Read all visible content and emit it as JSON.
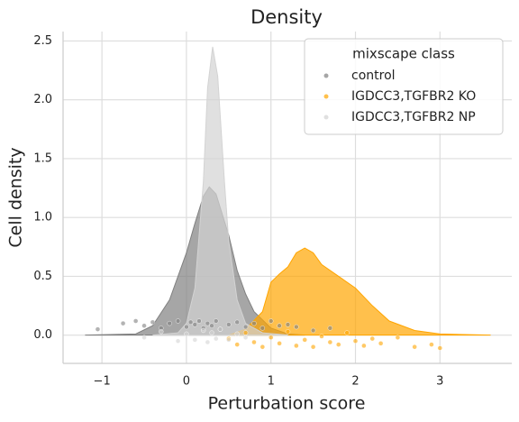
{
  "chart_data": {
    "type": "density",
    "title": "Density",
    "x_label": "Perturbation score",
    "y_label": "Cell density",
    "legend_title": "mixscape class",
    "legend_position": "upper right",
    "grid": true,
    "xlim": [
      -1.46,
      3.85
    ],
    "xticks": [
      {
        "value": -1,
        "label": "−1"
      },
      0,
      1,
      2,
      3
    ],
    "ylim": [
      -0.24,
      2.58
    ],
    "yticks": [
      {
        "value": 0,
        "label": "0.0"
      },
      0.5,
      {
        "value": 1,
        "label": "1.0"
      },
      1.5,
      {
        "value": 2,
        "label": "2.0"
      },
      2.5
    ],
    "series": [
      {
        "name": "control",
        "color": "#808080",
        "x": [
          -1.2,
          -0.6,
          -0.4,
          -0.2,
          0,
          0.1,
          0.2,
          0.27,
          0.35,
          0.5,
          0.6,
          0.7,
          0.8,
          1.0,
          1.2,
          1.4
        ],
        "values": [
          0,
          0.01,
          0.08,
          0.3,
          0.7,
          0.95,
          1.18,
          1.26,
          1.2,
          0.85,
          0.55,
          0.35,
          0.2,
          0.06,
          0.01,
          0
        ],
        "points_x": [
          -1.05,
          -0.75,
          -0.6,
          -0.5,
          -0.4,
          -0.3,
          -0.2,
          -0.1,
          0,
          0.05,
          0.1,
          0.15,
          0.2,
          0.25,
          0.3,
          0.35,
          0.4,
          0.5,
          0.6,
          0.7,
          0.8,
          0.9,
          1.0,
          1.1,
          1.2,
          1.3,
          1.5,
          1.7
        ],
        "points_y": [
          0.05,
          0.1,
          0.12,
          0.08,
          0.11,
          0.06,
          0.1,
          0.12,
          0.07,
          0.11,
          0.09,
          0.12,
          0.06,
          0.1,
          0.08,
          0.12,
          0.05,
          0.09,
          0.11,
          0.07,
          0.1,
          0.06,
          0.12,
          0.08,
          0.09,
          0.07,
          0.04,
          0.06
        ]
      },
      {
        "name": "IGDCC3,TGFBR2 KO",
        "color": "#ffa500",
        "x": [
          0.5,
          0.7,
          0.9,
          1.0,
          1.1,
          1.2,
          1.3,
          1.4,
          1.5,
          1.6,
          1.8,
          2.0,
          2.2,
          2.4,
          2.7,
          3.0,
          3.6
        ],
        "values": [
          0,
          0.05,
          0.2,
          0.45,
          0.52,
          0.58,
          0.7,
          0.74,
          0.7,
          0.6,
          0.5,
          0.4,
          0.25,
          0.12,
          0.04,
          0.01,
          0
        ],
        "points_x": [
          0.5,
          0.6,
          0.7,
          0.8,
          0.9,
          1.0,
          1.1,
          1.2,
          1.3,
          1.4,
          1.5,
          1.6,
          1.7,
          1.8,
          1.9,
          2.0,
          2.1,
          2.2,
          2.3,
          2.5,
          2.7,
          2.9,
          3.0
        ],
        "points_y": [
          -0.03,
          -0.08,
          0.02,
          -0.06,
          -0.1,
          -0.02,
          -0.07,
          0.03,
          -0.09,
          -0.04,
          -0.1,
          -0.01,
          -0.06,
          -0.08,
          0.02,
          -0.05,
          -0.09,
          -0.03,
          -0.07,
          -0.02,
          -0.1,
          -0.08,
          -0.11
        ]
      },
      {
        "name": "IGDCC3,TGFBR2 NP",
        "color": "#d3d3d3",
        "x": [
          -0.4,
          -0.1,
          0,
          0.1,
          0.2,
          0.25,
          0.31,
          0.37,
          0.45,
          0.5,
          0.6,
          0.7,
          0.9,
          1.2
        ],
        "values": [
          0,
          0.02,
          0.1,
          0.4,
          1.3,
          2.1,
          2.45,
          2.2,
          1.3,
          0.8,
          0.3,
          0.1,
          0.02,
          0
        ],
        "points_x": [
          -0.5,
          -0.3,
          -0.1,
          0,
          0.1,
          0.2,
          0.25,
          0.3,
          0.35,
          0.4,
          0.5,
          0.6,
          0.7
        ],
        "points_y": [
          -0.02,
          0.03,
          -0.05,
          0.01,
          -0.04,
          0.04,
          -0.06,
          0.02,
          -0.03,
          0.05,
          -0.04,
          0.01,
          -0.02
        ]
      }
    ]
  }
}
